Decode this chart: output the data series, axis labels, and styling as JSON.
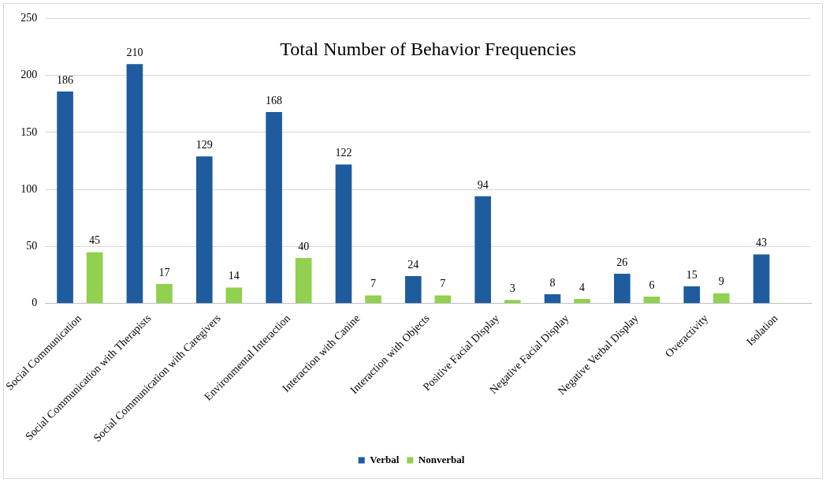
{
  "chart_data": {
    "type": "bar",
    "title": "Total Number of Behavior Frequencies",
    "categories": [
      "Social Communication",
      "Social Communication with Therapists",
      "Social Communication with Caregivers",
      "Environmental Interaction",
      "Interaction with Canine",
      "Interaction with Objects",
      "Positive Facial Display",
      "Negative Facial Display",
      "Negative Verbal Display",
      "Overactivity",
      "Isolation"
    ],
    "series": [
      {
        "name": "Verbal",
        "color": "#1f5c9e",
        "values": [
          186,
          210,
          129,
          168,
          122,
          24,
          94,
          8,
          26,
          15,
          43
        ]
      },
      {
        "name": "Nonverbal",
        "color": "#92d050",
        "values": [
          45,
          17,
          14,
          40,
          7,
          7,
          3,
          4,
          6,
          9,
          null
        ]
      }
    ],
    "ylim": [
      0,
      250
    ],
    "yticks": [
      0,
      50,
      100,
      150,
      200,
      250
    ],
    "grid": "y",
    "legend": "bottom",
    "data_labels": true
  }
}
